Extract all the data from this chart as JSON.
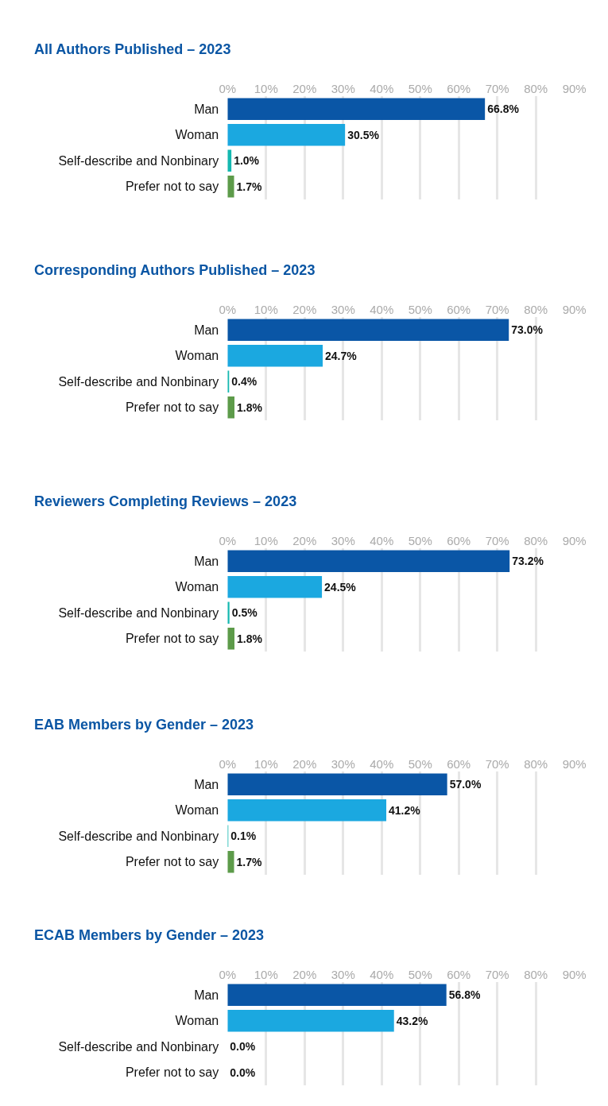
{
  "chart_data": [
    {
      "type": "bar",
      "orientation": "horizontal",
      "title": "All Authors Published – 2023",
      "categories": [
        "Man",
        "Woman",
        "Self-describe and Nonbinary",
        "Prefer not to say"
      ],
      "values": [
        66.8,
        30.5,
        1.0,
        1.7
      ],
      "value_labels": [
        "66.8%",
        "30.5%",
        "1.0%",
        "1.7%"
      ],
      "colors": [
        "#0a56a6",
        "#1ba8e0",
        "#14b8b0",
        "#5d9b4a"
      ],
      "xlim": [
        0,
        90
      ],
      "xticks": [
        {
          "value": 0,
          "label": "0%"
        },
        {
          "value": 10,
          "label": "10%"
        },
        {
          "value": 20,
          "label": "20%"
        },
        {
          "value": 30,
          "label": "30%"
        },
        {
          "value": 40,
          "label": "40%"
        },
        {
          "value": 50,
          "label": "50%"
        },
        {
          "value": 60,
          "label": "60%"
        },
        {
          "value": 70,
          "label": "70%"
        },
        {
          "value": 80,
          "label": "80%"
        },
        {
          "value": 90,
          "label": "90%"
        }
      ],
      "grid": "x"
    },
    {
      "type": "bar",
      "orientation": "horizontal",
      "title": "Corresponding Authors Published – 2023",
      "categories": [
        "Man",
        "Woman",
        "Self-describe and Nonbinary",
        "Prefer not to say"
      ],
      "values": [
        73.0,
        24.7,
        0.4,
        1.8
      ],
      "value_labels": [
        "73.0%",
        "24.7%",
        "0.4%",
        "1.8%"
      ],
      "colors": [
        "#0a56a6",
        "#1ba8e0",
        "#14b8b0",
        "#5d9b4a"
      ],
      "xlim": [
        0,
        90
      ],
      "xticks": [
        {
          "value": 0,
          "label": "0%"
        },
        {
          "value": 10,
          "label": "10%"
        },
        {
          "value": 20,
          "label": "20%"
        },
        {
          "value": 30,
          "label": "30%"
        },
        {
          "value": 40,
          "label": "40%"
        },
        {
          "value": 50,
          "label": "50%"
        },
        {
          "value": 60,
          "label": "60%"
        },
        {
          "value": 70,
          "label": "70%"
        },
        {
          "value": 80,
          "label": "80%"
        },
        {
          "value": 90,
          "label": "90%"
        }
      ],
      "grid": "x"
    },
    {
      "type": "bar",
      "orientation": "horizontal",
      "title": "Reviewers Completing Reviews – 2023",
      "categories": [
        "Man",
        "Woman",
        "Self-describe and Nonbinary",
        "Prefer not to say"
      ],
      "values": [
        73.2,
        24.5,
        0.5,
        1.8
      ],
      "value_labels": [
        "73.2%",
        "24.5%",
        "0.5%",
        "1.8%"
      ],
      "colors": [
        "#0a56a6",
        "#1ba8e0",
        "#14b8b0",
        "#5d9b4a"
      ],
      "xlim": [
        0,
        90
      ],
      "xticks": [
        {
          "value": 0,
          "label": "0%"
        },
        {
          "value": 10,
          "label": "10%"
        },
        {
          "value": 20,
          "label": "20%"
        },
        {
          "value": 30,
          "label": "30%"
        },
        {
          "value": 40,
          "label": "40%"
        },
        {
          "value": 50,
          "label": "50%"
        },
        {
          "value": 60,
          "label": "60%"
        },
        {
          "value": 70,
          "label": "70%"
        },
        {
          "value": 80,
          "label": "80%"
        },
        {
          "value": 90,
          "label": "90%"
        }
      ],
      "grid": "x"
    },
    {
      "type": "bar",
      "orientation": "horizontal",
      "title": "EAB Members by Gender – 2023",
      "categories": [
        "Man",
        "Woman",
        "Self-describe and Nonbinary",
        "Prefer not to say"
      ],
      "values": [
        57.0,
        41.2,
        0.1,
        1.7
      ],
      "value_labels": [
        "57.0%",
        "41.2%",
        "0.1%",
        "1.7%"
      ],
      "colors": [
        "#0a56a6",
        "#1ba8e0",
        "#14b8b0",
        "#5d9b4a"
      ],
      "xlim": [
        0,
        90
      ],
      "xticks": [
        {
          "value": 0,
          "label": "0%"
        },
        {
          "value": 10,
          "label": "10%"
        },
        {
          "value": 20,
          "label": "20%"
        },
        {
          "value": 30,
          "label": "30%"
        },
        {
          "value": 40,
          "label": "40%"
        },
        {
          "value": 50,
          "label": "50%"
        },
        {
          "value": 60,
          "label": "60%"
        },
        {
          "value": 70,
          "label": "70%"
        },
        {
          "value": 80,
          "label": "80%"
        },
        {
          "value": 90,
          "label": "90%"
        }
      ],
      "grid": "x"
    },
    {
      "type": "bar",
      "orientation": "horizontal",
      "title": "ECAB Members by Gender – 2023",
      "categories": [
        "Man",
        "Woman",
        "Self-describe and Nonbinary",
        "Prefer not to say"
      ],
      "values": [
        56.8,
        43.2,
        0.0,
        0.0
      ],
      "value_labels": [
        "56.8%",
        "43.2%",
        "0.0%",
        "0.0%"
      ],
      "colors": [
        "#0a56a6",
        "#1ba8e0",
        "#14b8b0",
        "#5d9b4a"
      ],
      "xlim": [
        0,
        90
      ],
      "xticks": [
        {
          "value": 0,
          "label": "0%"
        },
        {
          "value": 10,
          "label": "10%"
        },
        {
          "value": 20,
          "label": "20%"
        },
        {
          "value": 30,
          "label": "30%"
        },
        {
          "value": 40,
          "label": "40%"
        },
        {
          "value": 50,
          "label": "50%"
        },
        {
          "value": 60,
          "label": "60%"
        },
        {
          "value": 70,
          "label": "70%"
        },
        {
          "value": 80,
          "label": "80%"
        },
        {
          "value": 90,
          "label": "90%"
        }
      ],
      "grid": "x"
    }
  ]
}
